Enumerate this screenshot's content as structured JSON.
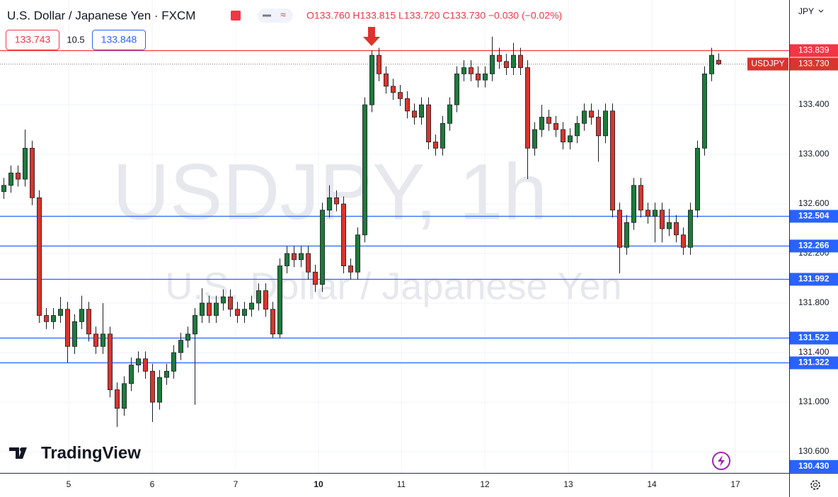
{
  "chart_data": {
    "type": "candlestick",
    "title": "U.S. Dollar / Japanese Yen · FXCM",
    "ohlc_summary": "O133.760 H133.815 L133.720 C133.730 −0.030 (−0.02%)",
    "bid": "133.743",
    "spread": "10.5",
    "ask": "133.848",
    "currency": "JPY",
    "watermark": "USDJPY, 1h",
    "watermark_subtitle": "U.S. Dollar / Japanese Yen",
    "brand": "TradingView",
    "symbol": "USDJPY",
    "up_color": "#1f7a3c",
    "down_color": "#d8352f",
    "open": [
      132.7,
      132.75,
      132.85,
      132.8,
      133.05,
      132.65,
      131.7,
      131.65,
      131.7,
      131.75,
      131.45,
      131.65,
      131.75,
      131.55,
      131.45,
      131.55,
      131.1,
      130.95,
      131.15,
      131.3,
      131.35,
      131.25,
      131.0,
      131.2,
      131.25,
      131.4,
      131.5,
      131.55,
      131.7,
      131.8,
      131.7,
      131.8,
      131.85,
      131.75,
      131.7,
      131.75,
      131.8,
      131.9,
      131.75,
      131.55,
      132.1,
      132.2,
      132.15,
      132.2,
      132.05,
      131.95,
      132.55,
      132.65,
      132.6,
      132.1,
      132.05,
      132.35,
      133.4,
      133.8,
      133.65,
      133.55,
      133.5,
      133.45,
      133.35,
      133.3,
      133.4,
      133.1,
      133.05,
      133.25,
      133.4,
      133.65,
      133.7,
      133.65,
      133.6,
      133.65,
      133.8,
      133.75,
      133.7,
      133.8,
      133.7,
      133.05,
      133.2,
      133.3,
      133.25,
      133.2,
      133.1,
      133.15,
      133.25,
      133.35,
      133.3,
      133.15,
      133.35,
      132.55,
      132.25,
      132.45,
      132.75,
      132.55,
      132.5,
      132.55,
      132.4,
      132.45,
      132.35,
      132.25,
      132.55,
      133.05,
      133.65,
      133.76
    ],
    "high": [
      132.81,
      132.91,
      132.91,
      133.2,
      133.11,
      132.71,
      131.76,
      131.76,
      131.85,
      131.81,
      131.71,
      131.86,
      131.81,
      131.61,
      131.8,
      131.61,
      131.16,
      131.21,
      131.36,
      131.41,
      131.41,
      131.31,
      131.26,
      131.31,
      131.46,
      131.56,
      131.61,
      131.76,
      131.92,
      131.86,
      131.86,
      131.91,
      131.91,
      131.81,
      131.81,
      131.86,
      131.96,
      131.96,
      131.81,
      132.16,
      132.26,
      132.26,
      132.26,
      132.26,
      132.11,
      132.61,
      132.75,
      132.71,
      132.66,
      132.16,
      132.41,
      133.46,
      133.84,
      133.86,
      133.71,
      133.61,
      133.56,
      133.51,
      133.41,
      133.46,
      133.46,
      133.16,
      133.31,
      133.46,
      133.71,
      133.76,
      133.76,
      133.71,
      133.71,
      133.95,
      133.86,
      133.81,
      133.9,
      133.86,
      133.76,
      133.26,
      133.4,
      133.36,
      133.31,
      133.26,
      133.21,
      133.31,
      133.41,
      133.41,
      133.36,
      133.41,
      133.41,
      132.61,
      132.51,
      132.81,
      132.81,
      132.61,
      132.61,
      132.61,
      132.56,
      132.51,
      132.41,
      132.61,
      133.11,
      133.71,
      133.86,
      133.815
    ],
    "low": [
      132.64,
      132.69,
      132.74,
      132.74,
      132.59,
      131.64,
      131.59,
      131.59,
      131.64,
      131.32,
      131.39,
      131.59,
      131.49,
      131.39,
      131.39,
      131.04,
      130.8,
      130.89,
      131.09,
      131.24,
      131.19,
      130.84,
      130.94,
      131.14,
      131.19,
      131.34,
      131.44,
      130.98,
      131.64,
      131.64,
      131.64,
      131.74,
      131.69,
      131.64,
      131.64,
      131.69,
      131.74,
      131.69,
      131.52,
      131.52,
      132.04,
      132.09,
      132.09,
      131.99,
      131.89,
      131.89,
      132.49,
      132.54,
      132.04,
      131.99,
      131.99,
      132.29,
      133.34,
      133.59,
      133.49,
      133.44,
      133.39,
      133.29,
      133.24,
      133.24,
      133.04,
      132.99,
      132.99,
      133.19,
      133.34,
      133.59,
      133.59,
      133.54,
      133.54,
      133.59,
      133.69,
      133.64,
      133.64,
      133.64,
      132.8,
      132.99,
      133.14,
      133.19,
      133.14,
      133.04,
      133.04,
      133.09,
      133.19,
      133.24,
      132.94,
      133.09,
      132.49,
      132.04,
      132.19,
      132.39,
      132.49,
      132.44,
      132.29,
      132.29,
      132.34,
      132.29,
      132.19,
      132.19,
      132.49,
      132.99,
      133.59,
      133.72
    ],
    "close": [
      132.75,
      132.85,
      132.8,
      133.05,
      132.65,
      131.7,
      131.65,
      131.7,
      131.75,
      131.45,
      131.65,
      131.75,
      131.55,
      131.45,
      131.55,
      131.1,
      130.95,
      131.15,
      131.3,
      131.35,
      131.25,
      131.0,
      131.2,
      131.25,
      131.4,
      131.5,
      131.55,
      131.7,
      131.8,
      131.7,
      131.8,
      131.85,
      131.75,
      131.7,
      131.75,
      131.8,
      131.9,
      131.75,
      131.55,
      132.1,
      132.2,
      132.15,
      132.2,
      132.05,
      131.95,
      132.55,
      132.65,
      132.6,
      132.1,
      132.05,
      132.35,
      133.4,
      133.8,
      133.65,
      133.55,
      133.5,
      133.45,
      133.35,
      133.3,
      133.4,
      133.1,
      133.05,
      133.25,
      133.4,
      133.65,
      133.7,
      133.65,
      133.6,
      133.65,
      133.8,
      133.75,
      133.7,
      133.8,
      133.7,
      133.05,
      133.2,
      133.3,
      133.25,
      133.2,
      133.1,
      133.15,
      133.25,
      133.35,
      133.3,
      133.15,
      133.35,
      132.55,
      132.25,
      132.45,
      132.75,
      132.55,
      132.5,
      132.55,
      132.4,
      132.45,
      132.35,
      132.25,
      132.55,
      133.05,
      133.65,
      133.8,
      133.73
    ],
    "ylim": [
      130.429,
      134.246
    ],
    "yticks": [
      {
        "value": 130.6,
        "label": "130.600"
      },
      {
        "value": 131,
        "label": "131.000"
      },
      {
        "value": 131.4,
        "label": "131.400"
      },
      {
        "value": 131.8,
        "label": "131.800"
      },
      {
        "value": 132.2,
        "label": "132.200"
      },
      {
        "value": 132.6,
        "label": "132.600"
      },
      {
        "value": 133,
        "label": "133.000"
      },
      {
        "value": 133.4,
        "label": "133.400"
      }
    ],
    "xlim": [
      -0.5,
      111
    ],
    "xticks": [
      {
        "value": 9.2,
        "label": "5"
      },
      {
        "value": 21,
        "label": "6"
      },
      {
        "value": 32.8,
        "label": "7"
      },
      {
        "value": 44.5,
        "label": "10"
      },
      {
        "value": 56.2,
        "label": "11"
      },
      {
        "value": 68,
        "label": "12"
      },
      {
        "value": 79.8,
        "label": "13"
      },
      {
        "value": 91.6,
        "label": "14"
      },
      {
        "value": 103.4,
        "label": "17"
      }
    ],
    "grid": true,
    "levels": [
      132.504,
      132.266,
      131.992,
      131.522,
      131.322
    ],
    "level_color": "#2962ff",
    "resistance": 133.839,
    "resistance_color": "#f23645",
    "last_price": {
      "value": 133.73,
      "label": "133.730"
    },
    "bottom_price": {
      "value": 130.43,
      "label": "130.430"
    }
  }
}
